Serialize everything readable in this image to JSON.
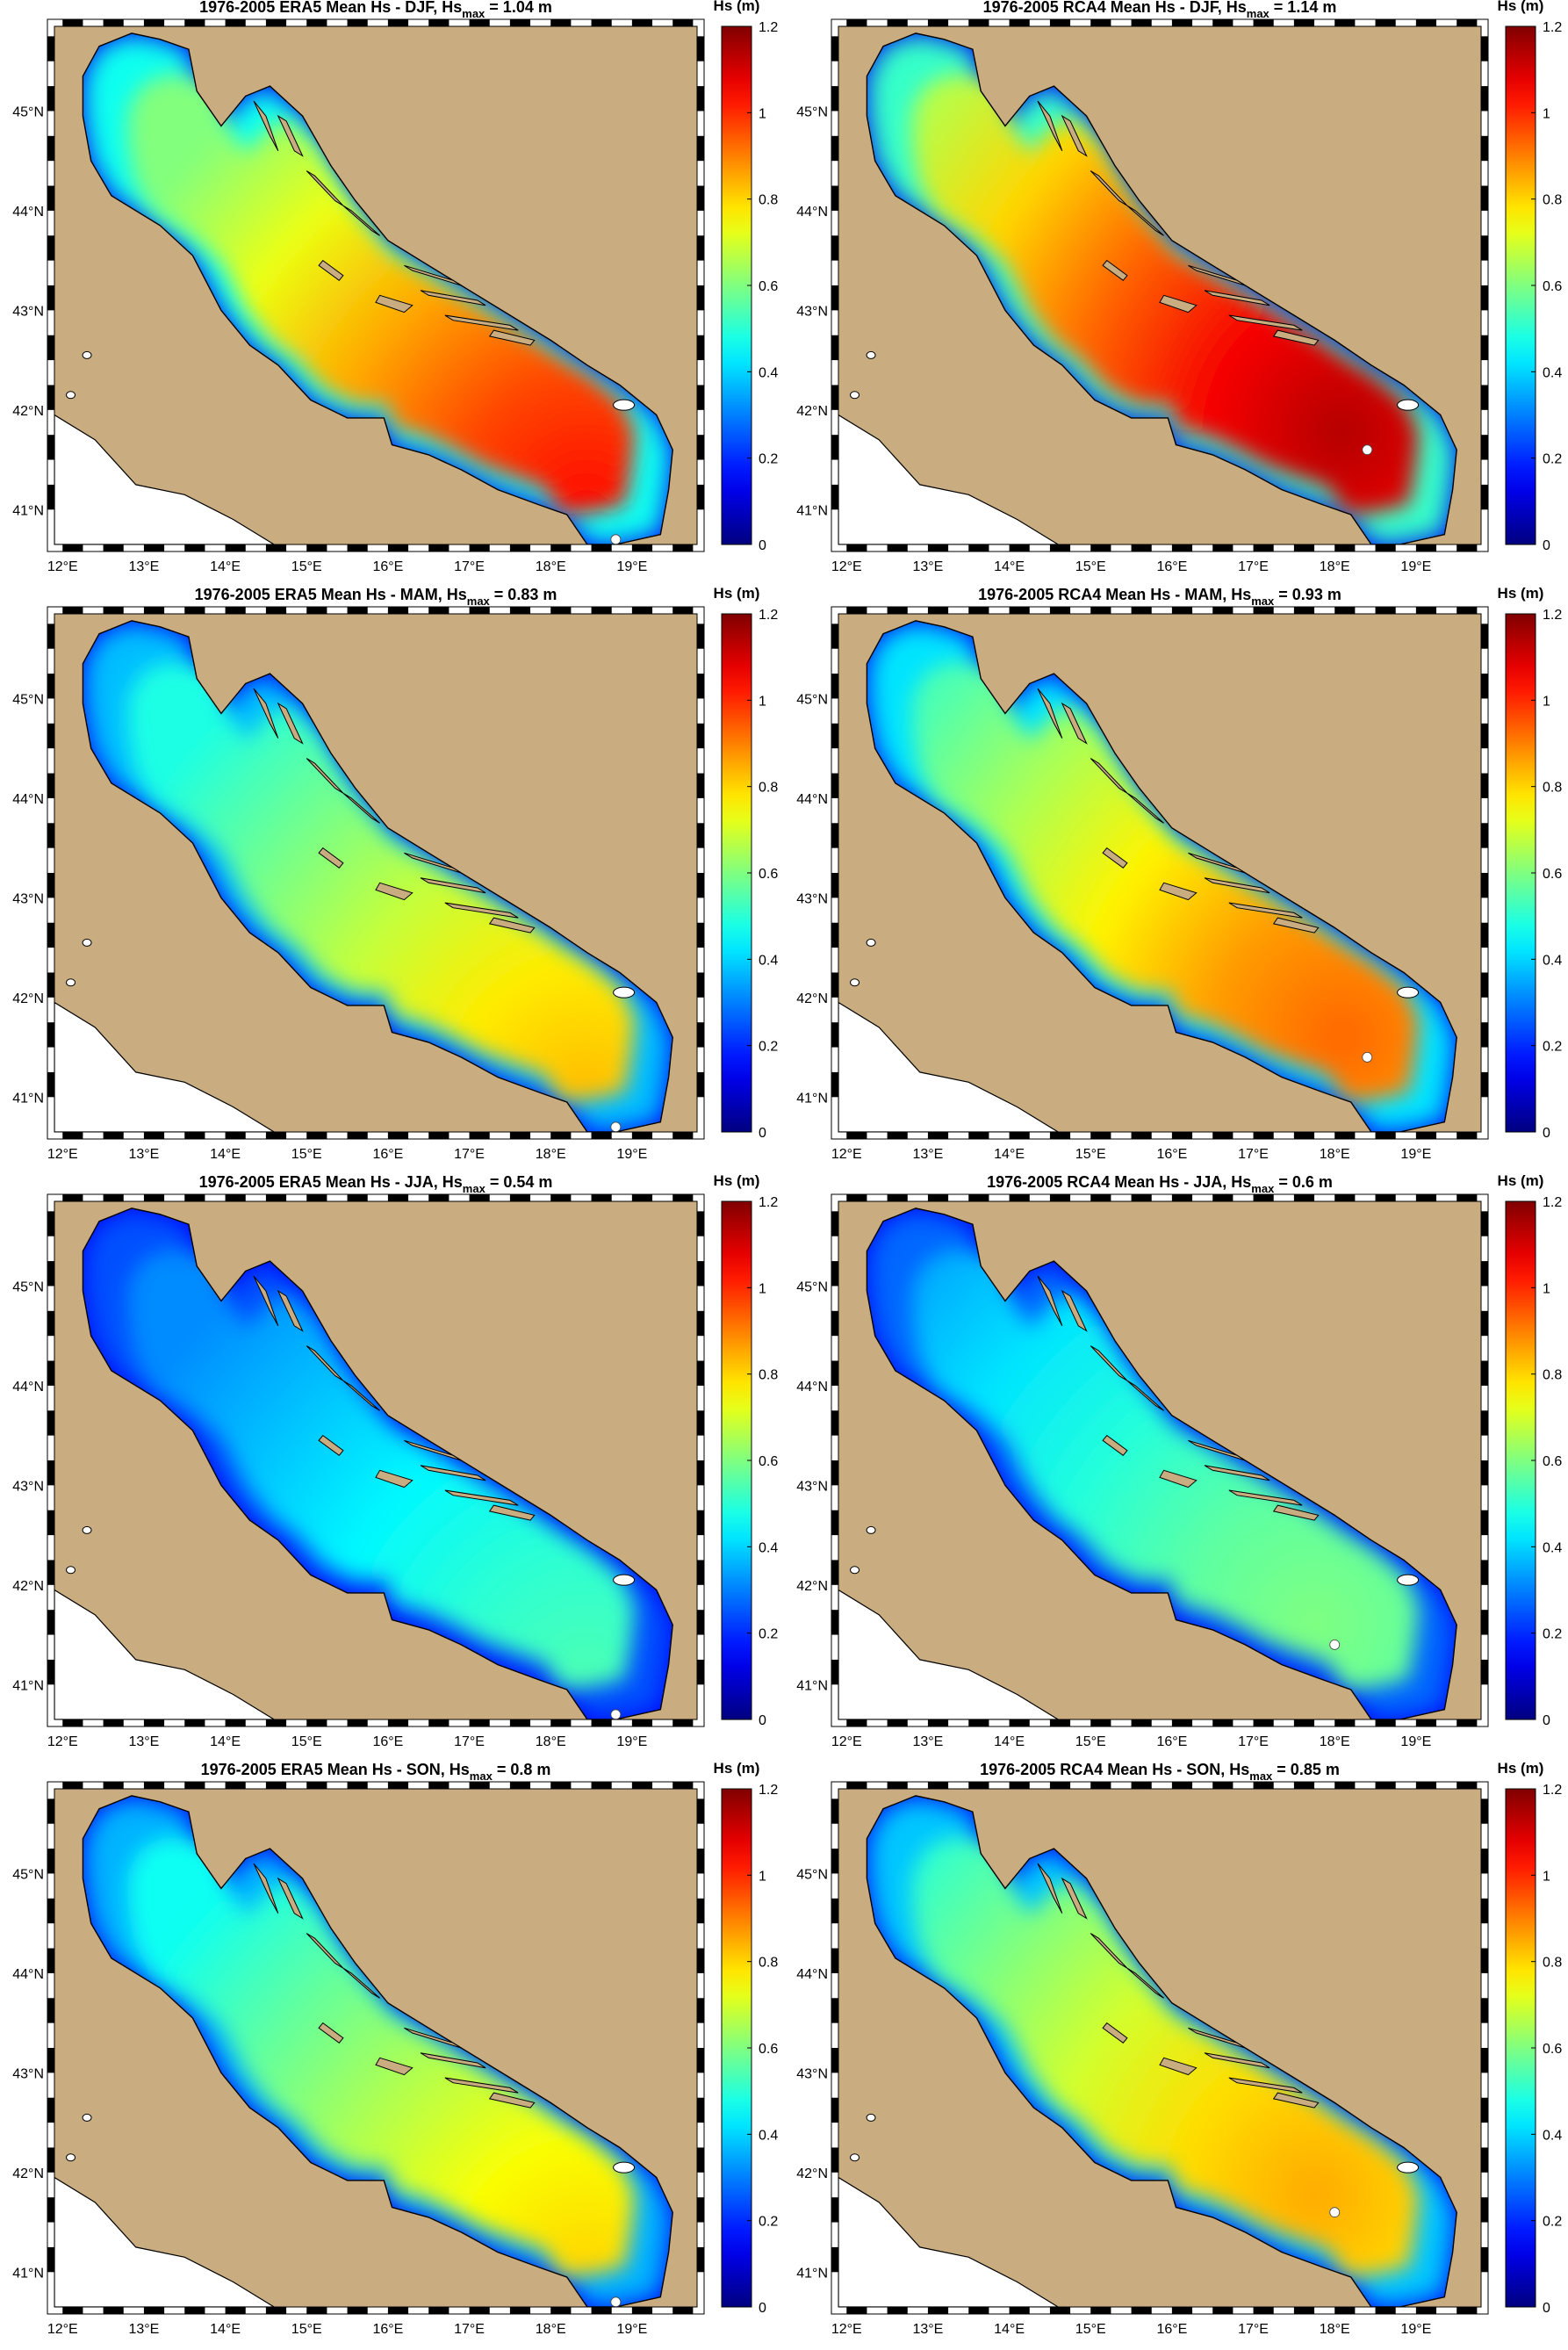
{
  "figure": {
    "colorbar": {
      "unit_label": "Hs (m)",
      "ticks": [
        "0",
        "0.2",
        "0.4",
        "0.6",
        "0.8",
        "1",
        "1.2"
      ],
      "range": [
        0,
        1.2
      ],
      "colormap": "jet"
    },
    "lon_ticks": [
      "12°E",
      "13°E",
      "14°E",
      "15°E",
      "16°E",
      "17°E",
      "18°E",
      "19°E"
    ],
    "lat_ticks": [
      "41°N",
      "42°N",
      "43°N",
      "44°N",
      "45°N"
    ],
    "land_color": "#c9ad80",
    "outside_color": "#ffffff",
    "max_marker_color": "#ffffff"
  },
  "panels": [
    {
      "id": "era5-djf",
      "title_pre": "1976-2005 ERA5   Mean Hs - DJF, Hs",
      "title_sub": "max",
      "title_post": " = 1.04 m",
      "hs_max": 1.04,
      "max_location": {
        "lon": 18.8,
        "lat": 40.7
      }
    },
    {
      "id": "rca4-djf",
      "title_pre": "1976-2005 RCA4   Mean Hs - DJF, Hs",
      "title_sub": "max",
      "title_post": " = 1.14 m",
      "hs_max": 1.14,
      "max_location": {
        "lon": 18.4,
        "lat": 41.6
      }
    },
    {
      "id": "era5-mam",
      "title_pre": "1976-2005 ERA5   Mean Hs - MAM, Hs",
      "title_sub": "max",
      "title_post": " = 0.83 m",
      "hs_max": 0.83,
      "max_location": {
        "lon": 18.8,
        "lat": 40.7
      }
    },
    {
      "id": "rca4-mam",
      "title_pre": "1976-2005 RCA4   Mean Hs - MAM, Hs",
      "title_sub": "max",
      "title_post": " = 0.93 m",
      "hs_max": 0.93,
      "max_location": {
        "lon": 18.4,
        "lat": 41.4
      }
    },
    {
      "id": "era5-jja",
      "title_pre": "1976-2005 ERA5   Mean Hs - JJA, Hs",
      "title_sub": "max",
      "title_post": " = 0.54 m",
      "hs_max": 0.54,
      "max_location": {
        "lon": 18.8,
        "lat": 40.7
      }
    },
    {
      "id": "rca4-jja",
      "title_pre": "1976-2005 RCA4   Mean Hs - JJA, Hs",
      "title_sub": "max",
      "title_post": " = 0.6 m",
      "hs_max": 0.6,
      "max_location": {
        "lon": 18.0,
        "lat": 41.4
      }
    },
    {
      "id": "era5-son",
      "title_pre": "1976-2005 ERA5   Mean Hs - SON, Hs",
      "title_sub": "max",
      "title_post": " = 0.8 m",
      "hs_max": 0.8,
      "max_location": {
        "lon": 18.8,
        "lat": 40.7
      }
    },
    {
      "id": "rca4-son",
      "title_pre": "1976-2005 RCA4   Mean Hs - SON, Hs",
      "title_sub": "max",
      "title_post": " = 0.85 m",
      "hs_max": 0.85,
      "max_location": {
        "lon": 18.0,
        "lat": 41.6
      }
    }
  ]
}
